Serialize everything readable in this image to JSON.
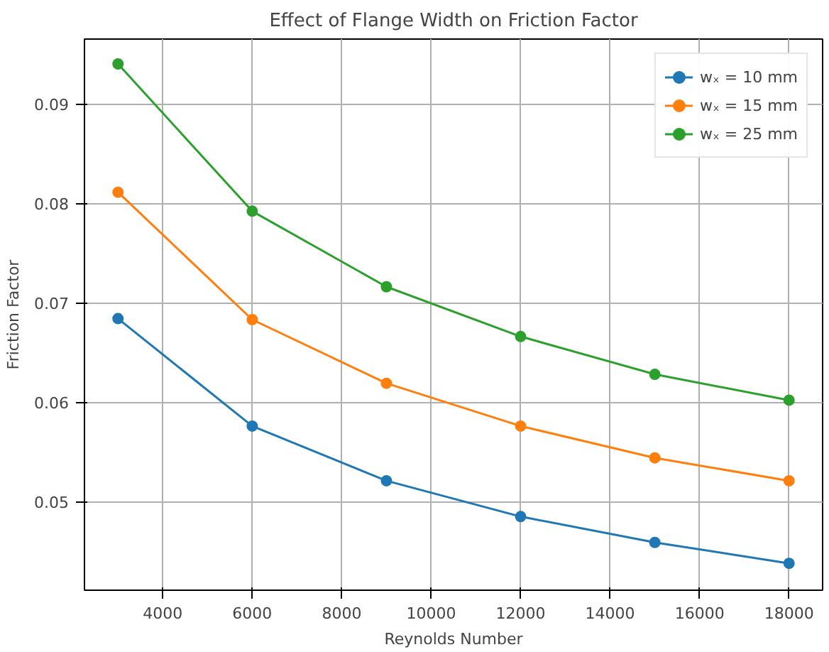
{
  "chart_data": {
    "type": "line",
    "title": "Effect of Flange Width on Friction Factor",
    "xlabel": "Reynolds Number",
    "ylabel": "Friction Factor",
    "x": [
      3000,
      6000,
      9000,
      12000,
      15000,
      18000
    ],
    "series": [
      {
        "name": "wₓ = 10 mm",
        "color": "#1f77b4",
        "values": [
          0.0684,
          0.0576,
          0.0521,
          0.0485,
          0.0459,
          0.0438
        ]
      },
      {
        "name": "wₓ = 15 mm",
        "color": "#ff7f0e",
        "values": [
          0.0811,
          0.0683,
          0.0619,
          0.0576,
          0.0544,
          0.0521
        ]
      },
      {
        "name": "wₓ = 25 mm",
        "color": "#2ca02c",
        "values": [
          0.094,
          0.0792,
          0.0716,
          0.0666,
          0.0628,
          0.0602
        ]
      }
    ],
    "xlim": [
      2250,
      18750
    ],
    "ylim": [
      0.0411,
      0.0965
    ],
    "xticks": [
      4000,
      6000,
      8000,
      10000,
      12000,
      14000,
      16000,
      18000
    ],
    "yticks": [
      0.05,
      0.06,
      0.07,
      0.08,
      0.09
    ],
    "grid": true,
    "legend": "top right",
    "marker": "circle",
    "line_style": "solid"
  }
}
